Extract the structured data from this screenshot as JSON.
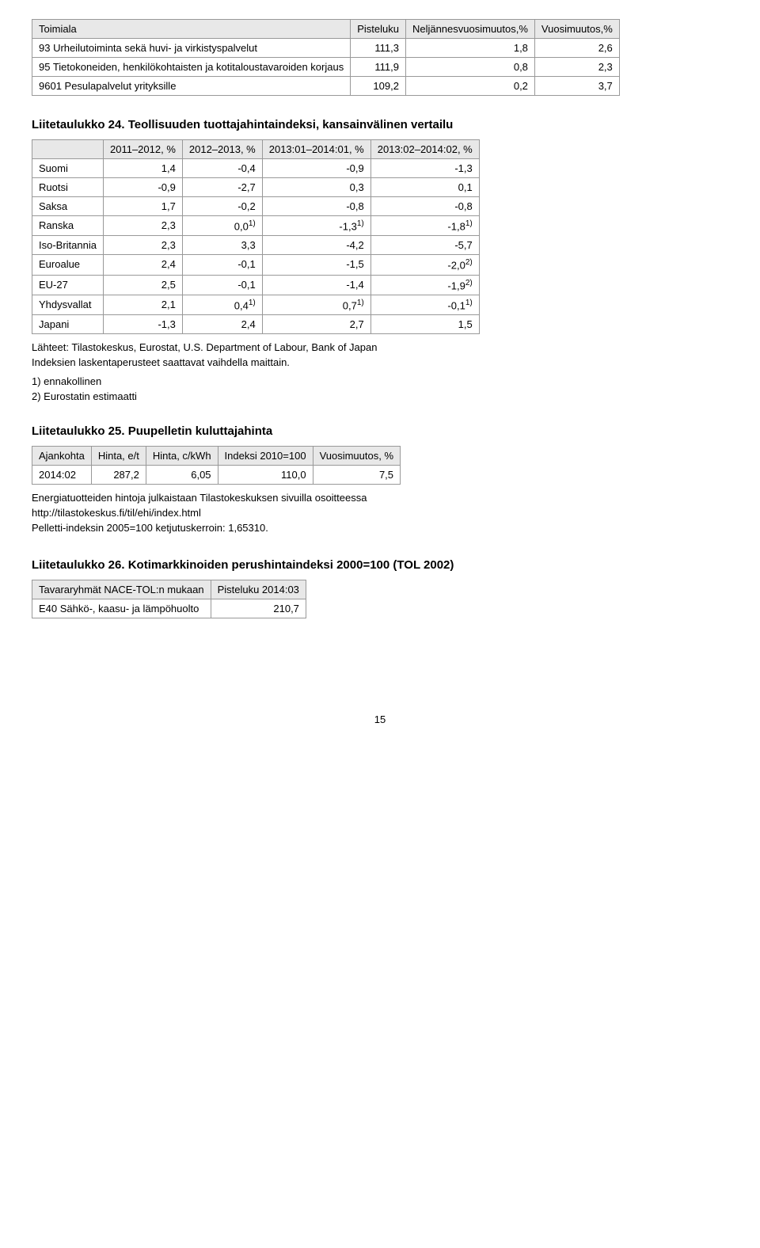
{
  "table1": {
    "columns": [
      "Toimiala",
      "Pisteluku",
      "Neljännesvuosimuutos,%",
      "Vuosimuutos,%"
    ],
    "rows": [
      [
        "93 Urheilutoiminta sekä huvi- ja virkistyspalvelut",
        "111,3",
        "1,8",
        "2,6"
      ],
      [
        "95 Tietokoneiden, henkilökohtaisten ja kotitaloustavaroiden korjaus",
        "111,9",
        "0,8",
        "2,3"
      ],
      [
        "9601 Pesulapalvelut yrityksille",
        "109,2",
        "0,2",
        "3,7"
      ]
    ]
  },
  "table24": {
    "title": "Liitetaulukko 24. Teollisuuden tuottajahintaindeksi, kansainvälinen vertailu",
    "columns": [
      "",
      "2011–2012, %",
      "2012–2013, %",
      "2013:01–2014:01, %",
      "2013:02–2014:02, %"
    ],
    "rows": [
      {
        "label": "Suomi",
        "c1": "1,4",
        "c2": "-0,4",
        "c3": "-0,9",
        "c4": "-1,3"
      },
      {
        "label": "Ruotsi",
        "c1": "-0,9",
        "c2": "-2,7",
        "c3": "0,3",
        "c4": "0,1"
      },
      {
        "label": "Saksa",
        "c1": "1,7",
        "c2": "-0,2",
        "c3": "-0,8",
        "c4": "-0,8"
      },
      {
        "label": "Ranska",
        "c1": "2,3",
        "c2": "0,0",
        "c2sup": "1)",
        "c3": "-1,3",
        "c3sup": "1)",
        "c4": "-1,8",
        "c4sup": "1)"
      },
      {
        "label": "Iso-Britannia",
        "c1": "2,3",
        "c2": "3,3",
        "c3": "-4,2",
        "c4": "-5,7"
      },
      {
        "label": "Euroalue",
        "c1": "2,4",
        "c2": "-0,1",
        "c3": "-1,5",
        "c4": "-2,0",
        "c4sup": "2)"
      },
      {
        "label": "EU-27",
        "c1": "2,5",
        "c2": "-0,1",
        "c3": "-1,4",
        "c4": "-1,9",
        "c4sup": "2)"
      },
      {
        "label": "Yhdysvallat",
        "c1": "2,1",
        "c2": "0,4",
        "c2sup": "1)",
        "c3": "0,7",
        "c3sup": "1)",
        "c4": "-0,1",
        "c4sup": "1)"
      },
      {
        "label": "Japani",
        "c1": "-1,3",
        "c2": "2,4",
        "c3": "2,7",
        "c4": "1,5"
      }
    ],
    "source1": "Lähteet: Tilastokeskus, Eurostat, U.S. Department of Labour, Bank of Japan",
    "source2": "Indeksien laskentaperusteet saattavat vaihdella maittain.",
    "foot1": "1) ennakollinen",
    "foot2": "2) Eurostatin estimaatti"
  },
  "table25": {
    "title": "Liitetaulukko 25. Puupelletin kuluttajahinta",
    "columns": [
      "Ajankohta",
      "Hinta, e/t",
      "Hinta, c/kWh",
      "Indeksi 2010=100",
      "Vuosimuutos, %"
    ],
    "rows": [
      [
        "2014:02",
        "287,2",
        "6,05",
        "110,0",
        "7,5"
      ]
    ],
    "note1": "Energiatuotteiden hintoja julkaistaan Tilastokeskuksen sivuilla osoitteessa",
    "note2": "http://tilastokeskus.fi/til/ehi/index.html",
    "note3": "Pelletti-indeksin 2005=100 ketjutuskerroin: 1,65310."
  },
  "table26": {
    "title": "Liitetaulukko 26. Kotimarkkinoiden perushintaindeksi 2000=100 (TOL 2002)",
    "columns": [
      "Tavararyhmät NACE-TOL:n mukaan",
      "Pisteluku 2014:03"
    ],
    "rows": [
      [
        "E40 Sähkö-, kaasu- ja lämpöhuolto",
        "210,7"
      ]
    ]
  },
  "pageNumber": "15"
}
